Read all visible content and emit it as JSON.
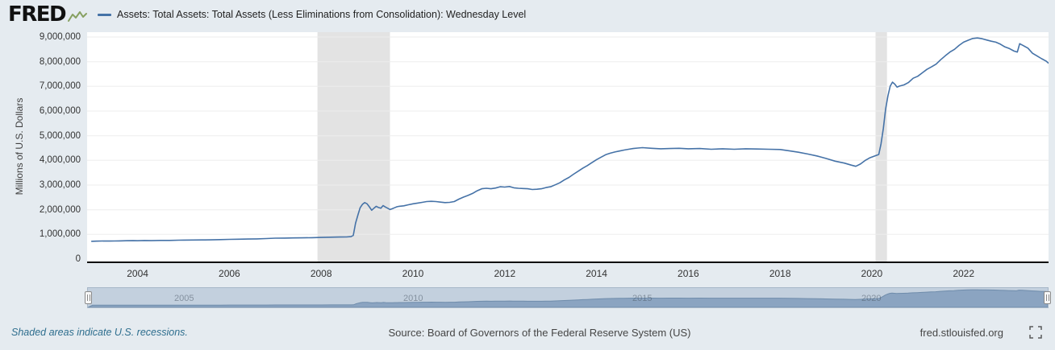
{
  "header": {
    "logo_text": "FRED",
    "series_label": "Assets: Total Assets: Total Assets (Less Eliminations from Consolidation): Wednesday Level"
  },
  "footer": {
    "recession_note": "Shaded areas indicate U.S. recessions.",
    "source": "Source: Board of Governors of the Federal Reserve System (US)",
    "site": "fred.stlouisfed.org"
  },
  "slider": {
    "tick_years": [
      2005,
      2010,
      2015,
      2020
    ],
    "tick_labels": [
      "2005",
      "2010",
      "2015",
      "2020"
    ]
  },
  "colors": {
    "page_bg": "#e5ebf0",
    "plot_bg": "#ffffff",
    "line": "#4572a7",
    "recession": "#e3e3e3",
    "gridline": "#ededed",
    "slider_track": "#c3d0de",
    "slider_area": "#8ba4c1",
    "slider_area_stroke": "#6f8cab",
    "logo_spark": "#87a061"
  },
  "chart_data": {
    "type": "line",
    "title": "Assets: Total Assets: Total Assets (Less Eliminations from Consolidation): Wednesday Level",
    "xlabel": "",
    "ylabel": "Millions of U.S. Dollars",
    "x_range": [
      2002.9,
      2023.85
    ],
    "ylim": [
      0,
      9000000
    ],
    "grid": true,
    "legend_position": "top",
    "line_color": "#4572a7",
    "y_ticks": [
      0,
      1000000,
      2000000,
      3000000,
      4000000,
      5000000,
      6000000,
      7000000,
      8000000,
      9000000
    ],
    "y_tick_labels": [
      "0",
      "1,000,000",
      "2,000,000",
      "3,000,000",
      "4,000,000",
      "5,000,000",
      "6,000,000",
      "7,000,000",
      "8,000,000",
      "9,000,000"
    ],
    "x_ticks": [
      2004,
      2006,
      2008,
      2010,
      2012,
      2014,
      2016,
      2018,
      2020,
      2022
    ],
    "x_tick_labels": [
      "2004",
      "2006",
      "2008",
      "2010",
      "2012",
      "2014",
      "2016",
      "2018",
      "2020",
      "2022"
    ],
    "recessions": [
      [
        2007.92,
        2009.5
      ],
      [
        2020.08,
        2020.33
      ]
    ],
    "series": [
      {
        "name": "Assets: Total Assets: Total Assets (Less Eliminations from Consolidation): Wednesday Level",
        "units": "Millions of U.S. Dollars",
        "points": [
          [
            2003.0,
            722000
          ],
          [
            2003.1,
            728000
          ],
          [
            2003.25,
            735000
          ],
          [
            2003.4,
            730000
          ],
          [
            2003.5,
            733000
          ],
          [
            2003.6,
            738000
          ],
          [
            2003.75,
            742000
          ],
          [
            2003.9,
            748000
          ],
          [
            2004.0,
            745000
          ],
          [
            2004.15,
            752000
          ],
          [
            2004.3,
            748000
          ],
          [
            2004.5,
            755000
          ],
          [
            2004.7,
            758000
          ],
          [
            2004.9,
            765000
          ],
          [
            2005.0,
            768000
          ],
          [
            2005.2,
            772000
          ],
          [
            2005.4,
            776000
          ],
          [
            2005.6,
            780000
          ],
          [
            2005.8,
            788000
          ],
          [
            2006.0,
            798000
          ],
          [
            2006.2,
            806000
          ],
          [
            2006.4,
            812000
          ],
          [
            2006.6,
            818000
          ],
          [
            2006.8,
            830000
          ],
          [
            2007.0,
            848000
          ],
          [
            2007.2,
            852000
          ],
          [
            2007.4,
            856000
          ],
          [
            2007.6,
            860000
          ],
          [
            2007.8,
            868000
          ],
          [
            2008.0,
            878000
          ],
          [
            2008.2,
            886000
          ],
          [
            2008.4,
            892000
          ],
          [
            2008.55,
            898000
          ],
          [
            2008.65,
            910000
          ],
          [
            2008.7,
            960000
          ],
          [
            2008.75,
            1450000
          ],
          [
            2008.8,
            1780000
          ],
          [
            2008.85,
            2080000
          ],
          [
            2008.9,
            2220000
          ],
          [
            2008.95,
            2290000
          ],
          [
            2009.0,
            2240000
          ],
          [
            2009.05,
            2120000
          ],
          [
            2009.1,
            1980000
          ],
          [
            2009.15,
            2060000
          ],
          [
            2009.2,
            2140000
          ],
          [
            2009.25,
            2090000
          ],
          [
            2009.3,
            2060000
          ],
          [
            2009.35,
            2170000
          ],
          [
            2009.4,
            2110000
          ],
          [
            2009.45,
            2060000
          ],
          [
            2009.5,
            2010000
          ],
          [
            2009.55,
            2040000
          ],
          [
            2009.6,
            2080000
          ],
          [
            2009.65,
            2120000
          ],
          [
            2009.7,
            2140000
          ],
          [
            2009.8,
            2160000
          ],
          [
            2009.9,
            2200000
          ],
          [
            2010.0,
            2240000
          ],
          [
            2010.1,
            2270000
          ],
          [
            2010.2,
            2300000
          ],
          [
            2010.3,
            2330000
          ],
          [
            2010.4,
            2340000
          ],
          [
            2010.5,
            2330000
          ],
          [
            2010.6,
            2310000
          ],
          [
            2010.7,
            2290000
          ],
          [
            2010.8,
            2300000
          ],
          [
            2010.9,
            2330000
          ],
          [
            2011.0,
            2430000
          ],
          [
            2011.1,
            2510000
          ],
          [
            2011.2,
            2580000
          ],
          [
            2011.3,
            2660000
          ],
          [
            2011.4,
            2770000
          ],
          [
            2011.5,
            2850000
          ],
          [
            2011.6,
            2870000
          ],
          [
            2011.7,
            2850000
          ],
          [
            2011.8,
            2880000
          ],
          [
            2011.9,
            2930000
          ],
          [
            2012.0,
            2920000
          ],
          [
            2012.1,
            2940000
          ],
          [
            2012.2,
            2890000
          ],
          [
            2012.3,
            2870000
          ],
          [
            2012.4,
            2860000
          ],
          [
            2012.5,
            2850000
          ],
          [
            2012.6,
            2820000
          ],
          [
            2012.7,
            2830000
          ],
          [
            2012.8,
            2850000
          ],
          [
            2012.9,
            2900000
          ],
          [
            2013.0,
            2930000
          ],
          [
            2013.1,
            3010000
          ],
          [
            2013.2,
            3090000
          ],
          [
            2013.3,
            3210000
          ],
          [
            2013.4,
            3310000
          ],
          [
            2013.5,
            3440000
          ],
          [
            2013.6,
            3560000
          ],
          [
            2013.7,
            3680000
          ],
          [
            2013.8,
            3790000
          ],
          [
            2013.9,
            3910000
          ],
          [
            2014.0,
            4030000
          ],
          [
            2014.1,
            4130000
          ],
          [
            2014.2,
            4230000
          ],
          [
            2014.3,
            4290000
          ],
          [
            2014.4,
            4340000
          ],
          [
            2014.5,
            4380000
          ],
          [
            2014.6,
            4420000
          ],
          [
            2014.7,
            4450000
          ],
          [
            2014.8,
            4480000
          ],
          [
            2014.9,
            4500000
          ],
          [
            2015.0,
            4516000
          ],
          [
            2015.2,
            4490000
          ],
          [
            2015.4,
            4470000
          ],
          [
            2015.6,
            4480000
          ],
          [
            2015.8,
            4490000
          ],
          [
            2016.0,
            4470000
          ],
          [
            2016.25,
            4480000
          ],
          [
            2016.5,
            4450000
          ],
          [
            2016.75,
            4470000
          ],
          [
            2017.0,
            4450000
          ],
          [
            2017.25,
            4470000
          ],
          [
            2017.5,
            4460000
          ],
          [
            2017.75,
            4450000
          ],
          [
            2018.0,
            4440000
          ],
          [
            2018.2,
            4390000
          ],
          [
            2018.4,
            4330000
          ],
          [
            2018.6,
            4260000
          ],
          [
            2018.8,
            4180000
          ],
          [
            2019.0,
            4080000
          ],
          [
            2019.2,
            3970000
          ],
          [
            2019.4,
            3890000
          ],
          [
            2019.55,
            3810000
          ],
          [
            2019.65,
            3760000
          ],
          [
            2019.75,
            3850000
          ],
          [
            2019.85,
            3990000
          ],
          [
            2019.95,
            4100000
          ],
          [
            2020.05,
            4170000
          ],
          [
            2020.15,
            4240000
          ],
          [
            2020.2,
            4670000
          ],
          [
            2020.25,
            5300000
          ],
          [
            2020.3,
            6080000
          ],
          [
            2020.35,
            6620000
          ],
          [
            2020.4,
            7010000
          ],
          [
            2020.45,
            7170000
          ],
          [
            2020.5,
            7090000
          ],
          [
            2020.55,
            6970000
          ],
          [
            2020.6,
            7010000
          ],
          [
            2020.7,
            7060000
          ],
          [
            2020.8,
            7160000
          ],
          [
            2020.9,
            7330000
          ],
          [
            2021.0,
            7410000
          ],
          [
            2021.1,
            7550000
          ],
          [
            2021.2,
            7690000
          ],
          [
            2021.3,
            7790000
          ],
          [
            2021.4,
            7900000
          ],
          [
            2021.5,
            8080000
          ],
          [
            2021.6,
            8240000
          ],
          [
            2021.7,
            8390000
          ],
          [
            2021.8,
            8500000
          ],
          [
            2021.9,
            8660000
          ],
          [
            2022.0,
            8790000
          ],
          [
            2022.1,
            8870000
          ],
          [
            2022.2,
            8940000
          ],
          [
            2022.3,
            8962000
          ],
          [
            2022.4,
            8930000
          ],
          [
            2022.5,
            8880000
          ],
          [
            2022.6,
            8830000
          ],
          [
            2022.7,
            8790000
          ],
          [
            2022.8,
            8710000
          ],
          [
            2022.9,
            8600000
          ],
          [
            2023.0,
            8530000
          ],
          [
            2023.1,
            8430000
          ],
          [
            2023.17,
            8390000
          ],
          [
            2023.22,
            8730000
          ],
          [
            2023.3,
            8650000
          ],
          [
            2023.4,
            8550000
          ],
          [
            2023.5,
            8340000
          ],
          [
            2023.6,
            8230000
          ],
          [
            2023.7,
            8120000
          ],
          [
            2023.8,
            8020000
          ],
          [
            2023.85,
            7940000
          ]
        ]
      }
    ]
  }
}
